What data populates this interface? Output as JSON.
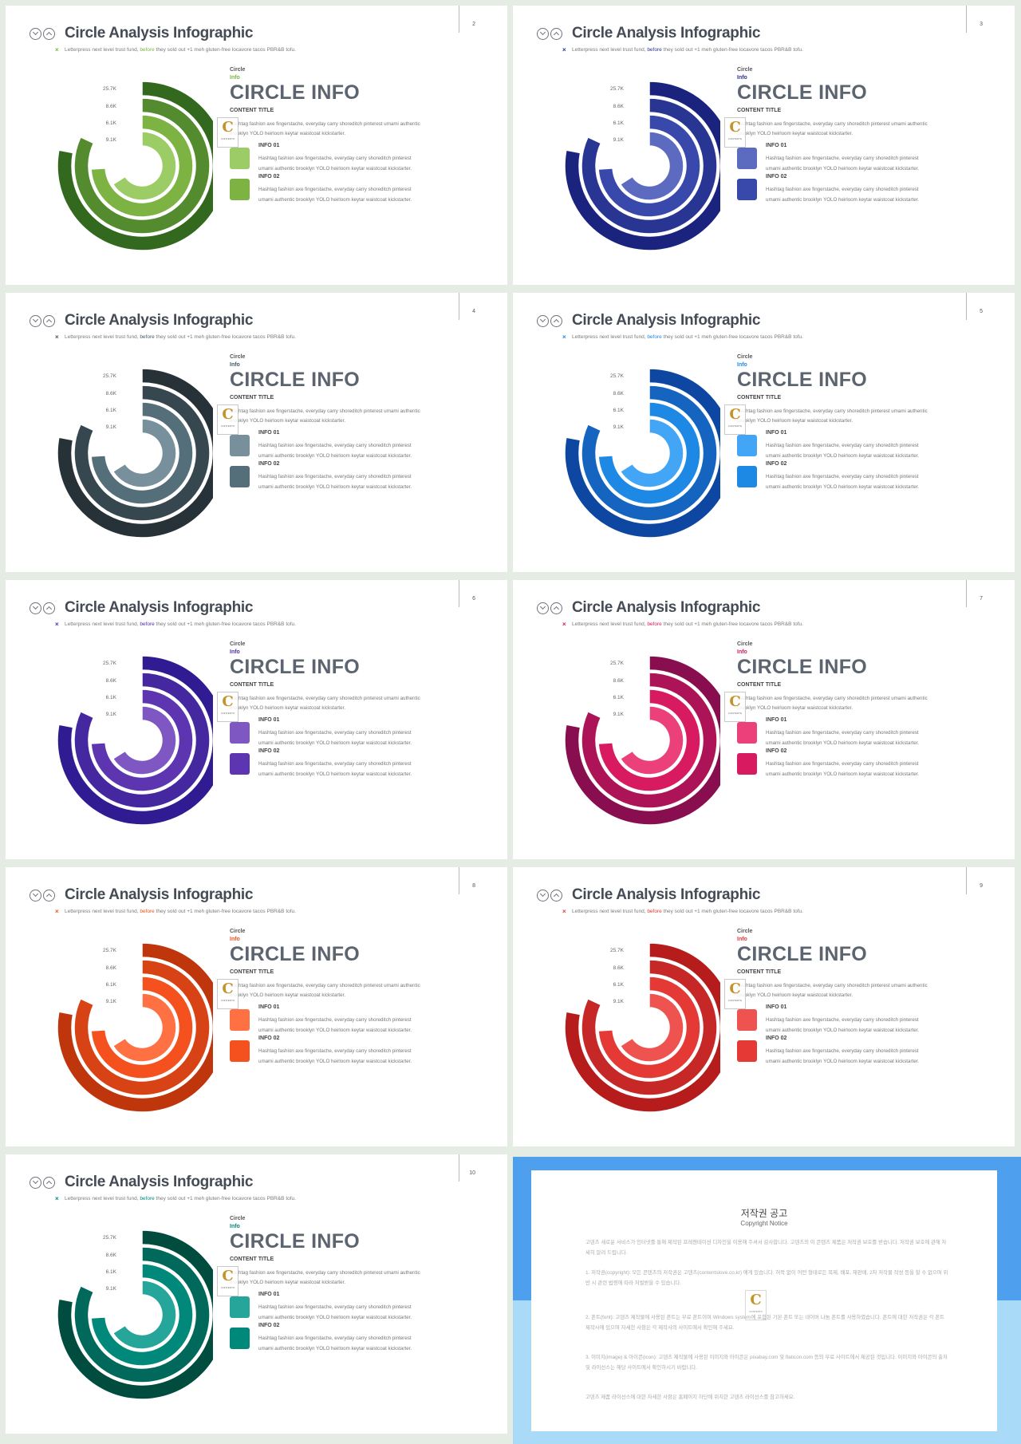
{
  "common": {
    "title": "Circle Analysis Infographic",
    "subtitle_prefix": "Letterpress next level trust fund, ",
    "subtitle_highlight": "before",
    "subtitle_suffix": " they sold out +1 meh gluten-free locavore tacos PBR&B tofu.",
    "small_label_1": "Circle",
    "small_label_2": "Info",
    "big_title": "CIRCLE INFO",
    "content_title": "CONTENT TITLE",
    "description": "Hashtag fashion axe fingerstache, everyday carry shoreditch pinterest umami authentic brooklyn YOLO heirloom keytar waistcoat kickstarter.",
    "info1_label": "INFO 01",
    "info2_label": "INFO 02",
    "info_text": "Hashtag fashion axe fingerstache, everyday carry shoreditch pinterest umami authentic brooklyn YOLO heirloom keytar waistcoat kickstarter.",
    "logo_letter": "C",
    "logo_caption": "CONTENTS"
  },
  "chart_data": {
    "type": "radial-bar",
    "categories": [
      "25.7K",
      "8.6K",
      "6.1K",
      "9.1K"
    ],
    "values": [
      0.78,
      0.82,
      0.74,
      0.66
    ]
  },
  "slides": [
    {
      "page": "2",
      "accent": "#7ab648",
      "colors": [
        "#33691e",
        "#558b2f",
        "#7cb342",
        "#9ccc65"
      ]
    },
    {
      "page": "3",
      "accent": "#283593",
      "colors": [
        "#1a237e",
        "#283593",
        "#3949ab",
        "#5c6bc0"
      ]
    },
    {
      "page": "4",
      "accent": "#455a64",
      "colors": [
        "#263238",
        "#37474f",
        "#546e7a",
        "#78909c"
      ]
    },
    {
      "page": "5",
      "accent": "#1e88e5",
      "colors": [
        "#0d47a1",
        "#1565c0",
        "#1e88e5",
        "#42a5f5"
      ]
    },
    {
      "page": "6",
      "accent": "#512da8",
      "colors": [
        "#311b92",
        "#4527a0",
        "#5e35b1",
        "#7e57c2"
      ]
    },
    {
      "page": "7",
      "accent": "#d81b60",
      "colors": [
        "#880e4f",
        "#ad1457",
        "#d81b60",
        "#ec407a"
      ]
    },
    {
      "page": "8",
      "accent": "#f4511e",
      "colors": [
        "#bf360c",
        "#d84315",
        "#f4511e",
        "#ff7043"
      ]
    },
    {
      "page": "9",
      "accent": "#e53935",
      "colors": [
        "#b71c1c",
        "#c62828",
        "#e53935",
        "#ef5350"
      ]
    },
    {
      "page": "10",
      "accent": "#00897b",
      "colors": [
        "#004d40",
        "#00695c",
        "#00897b",
        "#26a69a"
      ]
    }
  ],
  "notice": {
    "title": "저작권 공고",
    "subtitle": "Copyright Notice",
    "paragraphs": [
      "고덴츠 새로운 서비스가 인터넷를 통해 제작된 프레젠테이션 디자인을 이용해 주셔서 감사합니다. 고덴츠의 이 콘텐츠 제품은 저작권 보호를 받습니다. 저작권 보호에 관해 자세히 알려 드립니다.",
      "1. 저작권(copyright): 모든 콘텐츠의 저작권은 고덴츠(contentslove.co.kr) 에게 있습니다. 허락 없이 어떤 형태로든 복제, 배포, 재판매, 2차 저작물 작성 등을 할 수 없으며 위반 시 관련 법령에 따라 처벌받을 수 있습니다.",
      "2. 폰트(font): 고덴츠 제작물에 사용된 폰트는 무료 폰트이며 Windows system에 포함된 기본 폰트 또는 네이버 나눔 폰트를 사용하였습니다. 폰트에 대한 저작권은 각 폰트 제작사에 있으며 자세한 사항은 각 제작사의 사이트에서 확인해 주세요.",
      "3. 이미지(image) & 아이콘(icon): 고덴츠 제작물에 사용된 이미지와 아이콘은 pixabay.com 및 flaticon.com 등의 무료 사이트에서 제공된 것입니다. 이미지와 아이콘의 출처 및 라이선스는 해당 사이트에서 확인하시기 바랍니다.",
      "고덴츠 제품 라이선스에 대한 자세한 사항은 홈페이지 하단에 위치한 고덴츠 라이선스를 참고하세요."
    ],
    "logo_letter": "C",
    "logo_caption": "CONTENTS"
  }
}
